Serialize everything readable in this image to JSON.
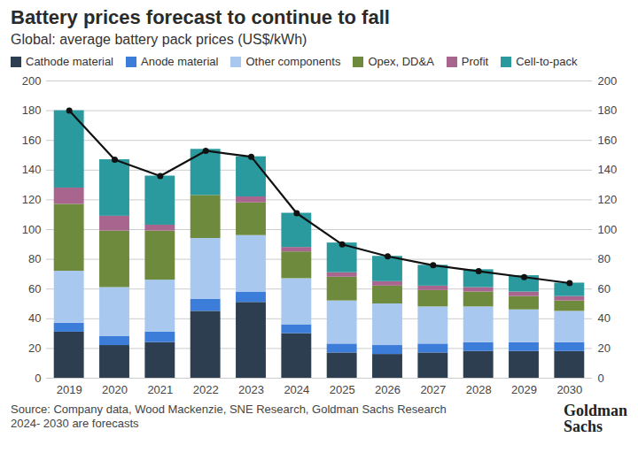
{
  "chart_data": {
    "type": "bar",
    "stacked": true,
    "title": "Battery prices forecast to continue to fall",
    "subtitle": "Global: average battery pack prices (US$/kWh)",
    "source": "Source: Company data, Wood Mackenzie, SNE Research, Goldman Sachs Research",
    "footnote": "2024- 2030 are forecasts",
    "logo": [
      "Goldman",
      "Sachs"
    ],
    "categories": [
      "2019",
      "2020",
      "2021",
      "2022",
      "2023",
      "2024",
      "2025",
      "2026",
      "2027",
      "2028",
      "2029",
      "2030"
    ],
    "series": [
      {
        "name": "Cathode material",
        "color": "#2c3e50",
        "values": [
          31,
          22,
          24,
          45,
          51,
          30,
          17,
          16,
          17,
          18,
          18,
          18
        ]
      },
      {
        "name": "Anode material",
        "color": "#3b7dd8",
        "values": [
          6,
          6,
          7,
          8,
          7,
          6,
          6,
          6,
          6,
          6,
          6,
          6
        ]
      },
      {
        "name": "Other components",
        "color": "#a9c8f0",
        "values": [
          35,
          33,
          35,
          41,
          38,
          31,
          29,
          28,
          25,
          24,
          22,
          21
        ]
      },
      {
        "name": "Opex, DD&A",
        "color": "#6e8b3d",
        "values": [
          45,
          38,
          33,
          29,
          22,
          18,
          16,
          12,
          11,
          10,
          9,
          7
        ]
      },
      {
        "name": "Profit",
        "color": "#a8668f",
        "values": [
          11,
          10,
          4,
          0,
          4,
          3,
          3,
          3,
          3,
          3,
          3,
          3
        ]
      },
      {
        "name": "Cell-to-pack",
        "color": "#2a9a9e",
        "values": [
          52,
          38,
          33,
          31,
          27,
          23,
          20,
          17,
          14,
          12,
          11,
          9
        ]
      },
      {
        "type": "line",
        "color": "#111111",
        "marker": "circle",
        "values": [
          180,
          147,
          136,
          153,
          149,
          111,
          90,
          82,
          76,
          72,
          68,
          64
        ]
      }
    ],
    "ylim": [
      0,
      200
    ],
    "yticks": [
      0,
      20,
      40,
      60,
      80,
      100,
      120,
      140,
      160,
      180,
      200
    ],
    "y2lim": [
      0,
      200
    ],
    "y2ticks": [
      0,
      20,
      40,
      60,
      80,
      100,
      120,
      140,
      160,
      180,
      200
    ],
    "grid": true,
    "legend": "top-left"
  }
}
